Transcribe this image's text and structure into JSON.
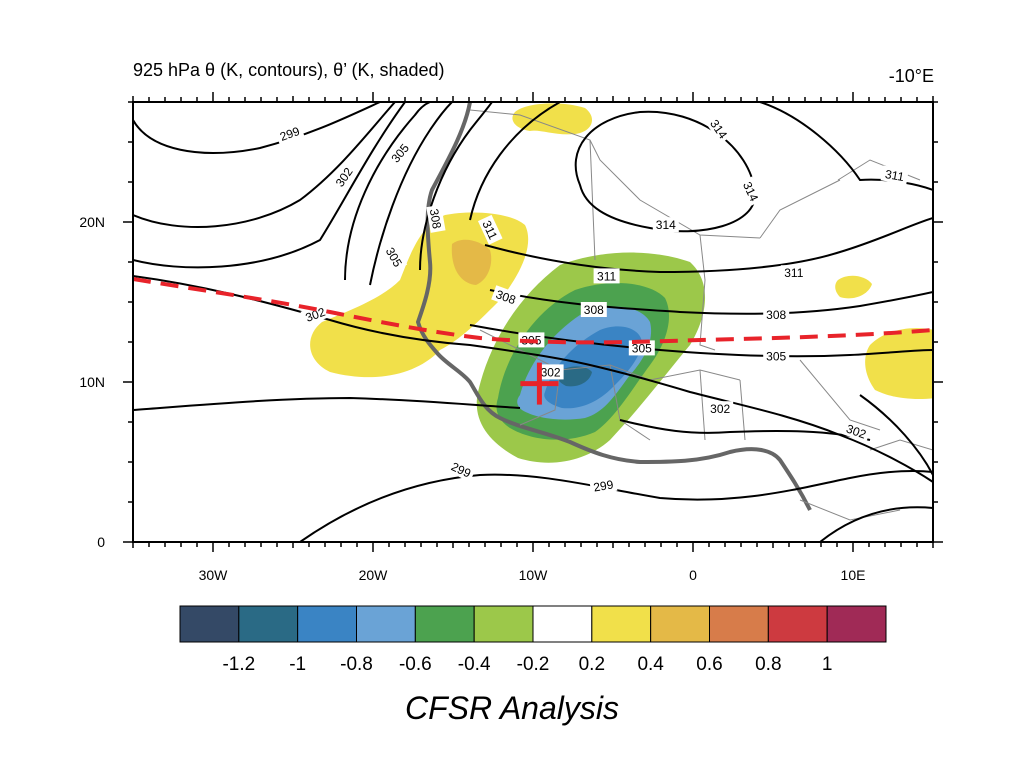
{
  "title": "925 hPa θ (K, contours), θ’ (K, shaded)",
  "right_label": "-10°E",
  "caption": "CFSR Analysis",
  "map": {
    "lon_range": [
      -35,
      15
    ],
    "lat_range": [
      0,
      27.5
    ],
    "lon_ticks": [
      {
        "lon": -30,
        "label": "30W"
      },
      {
        "lon": -20,
        "label": "20W"
      },
      {
        "lon": -10,
        "label": "10W"
      },
      {
        "lon": 0,
        "label": "0"
      },
      {
        "lon": 10,
        "label": "10E"
      }
    ],
    "lat_ticks": [
      {
        "lat": 0,
        "label": "0"
      },
      {
        "lat": 10,
        "label": "10N"
      },
      {
        "lat": 20,
        "label": "20N"
      }
    ],
    "contour_labels": [
      {
        "text": "299",
        "lon": -25.2,
        "lat": 25.5,
        "rot": -20
      },
      {
        "text": "302",
        "lon": -21.8,
        "lat": 22.8,
        "rot": -55
      },
      {
        "text": "305",
        "lon": -18.3,
        "lat": 24.3,
        "rot": -50
      },
      {
        "text": "308",
        "lon": -16.1,
        "lat": 20.2,
        "rot": 80
      },
      {
        "text": "311",
        "lon": -12.7,
        "lat": 19.5,
        "rot": 65
      },
      {
        "text": "305",
        "lon": -18.7,
        "lat": 17.8,
        "rot": 60
      },
      {
        "text": "314",
        "lon": 1.6,
        "lat": 25.8,
        "rot": 55
      },
      {
        "text": "314",
        "lon": 3.6,
        "lat": 21.9,
        "rot": 65
      },
      {
        "text": "314",
        "lon": -1.7,
        "lat": 19.8,
        "rot": 0
      },
      {
        "text": "311",
        "lon": 12.6,
        "lat": 22.9,
        "rot": 10
      },
      {
        "text": "311",
        "lon": -5.4,
        "lat": 16.6,
        "rot": 0
      },
      {
        "text": "311",
        "lon": 6.3,
        "lat": 16.8,
        "rot": 0
      },
      {
        "text": "308",
        "lon": -11.7,
        "lat": 15.3,
        "rot": 20
      },
      {
        "text": "308",
        "lon": -6.2,
        "lat": 14.5,
        "rot": 0
      },
      {
        "text": "308",
        "lon": 5.2,
        "lat": 14.2,
        "rot": 0
      },
      {
        "text": "305",
        "lon": -10.1,
        "lat": 12.6,
        "rot": 0
      },
      {
        "text": "305",
        "lon": -3.2,
        "lat": 12.1,
        "rot": 0
      },
      {
        "text": "305",
        "lon": 5.2,
        "lat": 11.6,
        "rot": 0
      },
      {
        "text": "302",
        "lon": -23.6,
        "lat": 14.2,
        "rot": -20
      },
      {
        "text": "302",
        "lon": -8.9,
        "lat": 10.6,
        "rot": 0
      },
      {
        "text": "302",
        "lon": 1.7,
        "lat": 8.3,
        "rot": 0
      },
      {
        "text": "302",
        "lon": 10.2,
        "lat": 6.9,
        "rot": 20
      },
      {
        "text": "299",
        "lon": -14.5,
        "lat": 4.5,
        "rot": 25
      },
      {
        "text": "299",
        "lon": -5.6,
        "lat": 3.5,
        "rot": -10
      }
    ],
    "contour_values": [
      "299",
      "302",
      "305",
      "308",
      "311",
      "314"
    ],
    "red_cross": {
      "lon": -9.6,
      "lat": 9.9
    },
    "shading_colors": {
      "neg_1_2": "#31445e",
      "neg_1": "#2a6f86",
      "neg_0_8": "#3a84c4",
      "neg_0_6": "#6aa3d6",
      "neg_0_4": "#4ca24f",
      "neg_0_2": "#9cc84a",
      "zero": "#ffffff",
      "pos_0_2": "#f1e04a",
      "pos_0_4": "#e4b947",
      "pos_0_6": "#d67b4a",
      "pos_0_8": "#cc3a3f",
      "pos_1": "#a02a56"
    },
    "dashed_line_color": "#e8232a"
  },
  "colorbar": {
    "colors": [
      "#344966",
      "#2a6a85",
      "#3a84c4",
      "#6aa3d6",
      "#4ca24f",
      "#9cc84a",
      "#ffffff",
      "#f1e04a",
      "#e4b947",
      "#d77c4a",
      "#cd3a40",
      "#a02a56"
    ],
    "labels": [
      "-1.2",
      "-1",
      "-0.8",
      "-0.6",
      "-0.4",
      "-0.2",
      "0.2",
      "0.4",
      "0.6",
      "0.8",
      "1"
    ]
  }
}
